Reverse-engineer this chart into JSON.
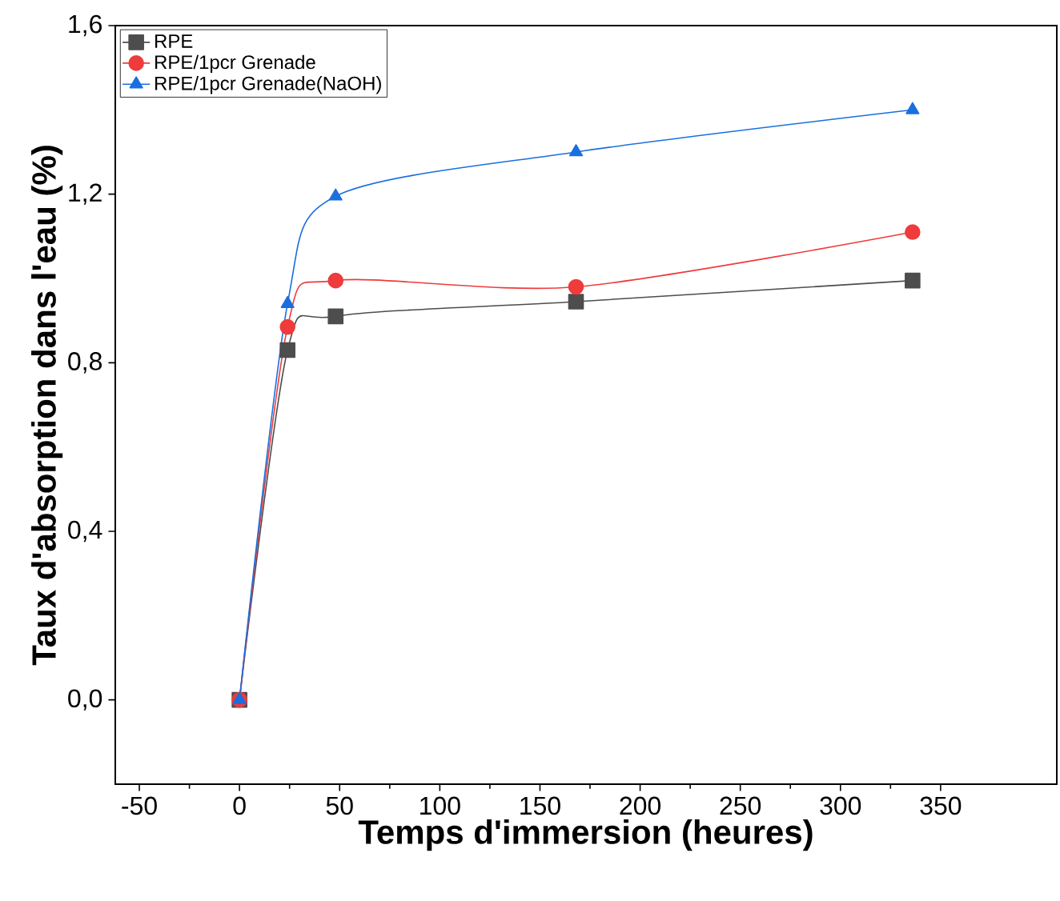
{
  "chart_data": {
    "type": "line",
    "xlabel": "Temps d'immersion (heures)",
    "ylabel": "Taux d'absorption dans l'eau (%)",
    "x": [
      0,
      24,
      48,
      168,
      336
    ],
    "series": [
      {
        "name": "RPE",
        "color": "#4d4d4d",
        "marker": "square",
        "values": [
          0,
          0.83,
          0.91,
          0.945,
          0.995
        ]
      },
      {
        "name": "RPE/1pcr Grenade",
        "color": "#ef3b3b",
        "marker": "circle",
        "values": [
          0,
          0.885,
          0.995,
          0.98,
          1.11
        ]
      },
      {
        "name": "RPE/1pcr Grenade(NaOH)",
        "color": "#1a6fdf",
        "marker": "triangle",
        "values": [
          0,
          0.94,
          1.195,
          1.3,
          1.4
        ]
      }
    ],
    "xlim": [
      -62,
      408
    ],
    "ylim": [
      -0.2,
      1.6
    ],
    "xticks": [
      -50,
      0,
      50,
      100,
      150,
      200,
      250,
      300,
      350
    ],
    "yticks": [
      {
        "value": 0,
        "label": "0,0"
      },
      {
        "value": 0.4,
        "label": "0,4"
      },
      {
        "value": 0.8,
        "label": "0,8"
      },
      {
        "value": 1.2,
        "label": "1,2"
      },
      {
        "value": 1.6,
        "label": "1,6"
      }
    ],
    "legend": "top left",
    "grid": false
  }
}
